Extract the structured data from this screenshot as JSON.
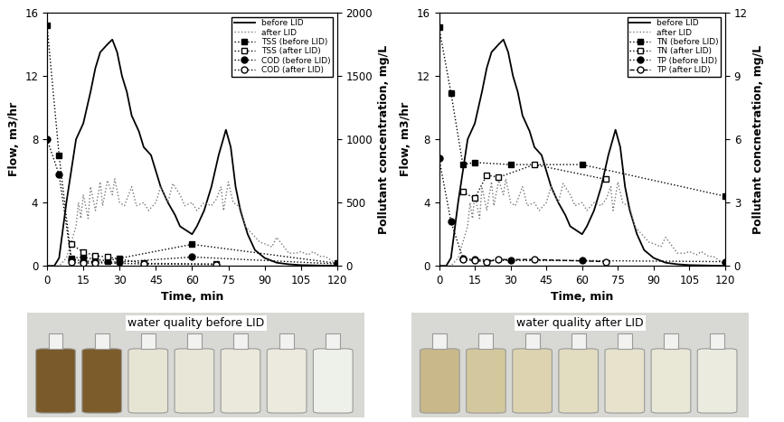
{
  "chart_data": [
    {
      "type": "line",
      "x_label": "Time, min",
      "y_label": "Flow, m3/hr",
      "y2_label": "Pollutant concentration, mg/L",
      "xlim": [
        0,
        120
      ],
      "xticks": [
        0,
        15,
        30,
        45,
        60,
        75,
        90,
        105,
        120
      ],
      "ylim": [
        0,
        16
      ],
      "yticks": [
        0,
        4,
        8,
        12,
        16
      ],
      "y2lim": [
        0,
        2000
      ],
      "y2ticks": [
        0,
        500,
        1000,
        1500,
        2000
      ],
      "legend": "upper right",
      "series": [
        {
          "name": "before LID",
          "color": "#000000",
          "line_style": "solid",
          "marker": "none",
          "axis": "y",
          "x": [
            0,
            3,
            5,
            8,
            10,
            12,
            15,
            18,
            20,
            22,
            25,
            27,
            29,
            31,
            33,
            35,
            38,
            40,
            43,
            45,
            47,
            50,
            53,
            55,
            58,
            60,
            62,
            65,
            68,
            71,
            74,
            76,
            78,
            80,
            83,
            86,
            90,
            95,
            100,
            105,
            120
          ],
          "values": [
            0,
            0,
            0.5,
            4,
            6,
            8,
            9,
            11,
            12.5,
            13.5,
            14,
            14.3,
            13.5,
            12,
            11,
            9.5,
            8.5,
            7.5,
            7,
            6,
            5,
            4,
            3.2,
            2.5,
            2.2,
            2,
            2.5,
            3.5,
            5,
            7,
            8.6,
            7.5,
            5,
            3.5,
            2,
            1,
            0.5,
            0.2,
            0.1,
            0.05,
            0
          ]
        },
        {
          "name": "after LID",
          "color": "#777777",
          "line_style": "dotted",
          "marker": "none",
          "axis": "y",
          "x": [
            0,
            5,
            8,
            10,
            12,
            13,
            14,
            15,
            17,
            18,
            20,
            22,
            23,
            25,
            27,
            28,
            30,
            32,
            35,
            37,
            40,
            42,
            45,
            47,
            50,
            52,
            55,
            57,
            60,
            62,
            65,
            68,
            70,
            72,
            73,
            75,
            77,
            80,
            82,
            85,
            88,
            90,
            93,
            95,
            98,
            100,
            103,
            105,
            108,
            110,
            113,
            115,
            118,
            120
          ],
          "values": [
            0,
            0,
            0.5,
            1.5,
            2.5,
            4,
            3,
            4.5,
            3,
            5,
            3.5,
            5.3,
            3.8,
            5.4,
            4.5,
            5.5,
            4,
            3.8,
            5,
            3.8,
            4,
            3.5,
            4,
            5,
            4,
            5.2,
            4.5,
            3.8,
            4,
            3.5,
            4,
            3.8,
            4.2,
            5,
            3.5,
            5.3,
            4,
            3.7,
            2.5,
            2,
            1.5,
            1.4,
            1.2,
            1.8,
            1.2,
            0.8,
            0.8,
            0.9,
            0.7,
            0.9,
            0.6,
            0.6,
            0.3,
            0
          ]
        },
        {
          "name": "TSS (before LID)",
          "color": "#000000",
          "line_style": "dotted",
          "marker": "square",
          "axis": "y2",
          "x": [
            0,
            5,
            10,
            15,
            20,
            25,
            30,
            60,
            120
          ],
          "values": [
            1900,
            870,
            60,
            70,
            50,
            40,
            60,
            170,
            20
          ]
        },
        {
          "name": "TSS (after LID)",
          "color": "#000000",
          "line_style": "dotted",
          "marker": "open_square",
          "axis": "y2",
          "x": [
            10,
            15,
            20,
            25,
            40,
            70
          ],
          "values": [
            170,
            110,
            80,
            70,
            20,
            15
          ]
        },
        {
          "name": "COD (before LID)",
          "color": "#000000",
          "line_style": "dotted",
          "marker": "circle",
          "axis": "y2",
          "x": [
            0,
            5,
            10,
            15,
            20,
            30,
            60,
            120
          ],
          "values": [
            1000,
            720,
            50,
            40,
            30,
            30,
            70,
            15
          ]
        },
        {
          "name": "COD (after LID)",
          "color": "#000000",
          "line_style": "dotted",
          "marker": "open_circle",
          "axis": "y2",
          "x": [
            10,
            15,
            20,
            40,
            70
          ],
          "values": [
            30,
            20,
            25,
            15,
            10
          ]
        }
      ]
    },
    {
      "type": "line",
      "x_label": "Time, min",
      "y_label": "Flow, m3/hr",
      "y2_label": "Pollutant concnetration, mg/L",
      "xlim": [
        0,
        120
      ],
      "xticks": [
        0,
        15,
        30,
        45,
        60,
        75,
        90,
        105,
        120
      ],
      "ylim": [
        0,
        16
      ],
      "yticks": [
        0,
        4,
        8,
        12,
        16
      ],
      "y2lim": [
        0,
        12
      ],
      "y2ticks": [
        0,
        3,
        6,
        9,
        12
      ],
      "legend": "upper right",
      "series": [
        {
          "name": "before LID",
          "color": "#000000",
          "line_style": "solid",
          "marker": "none",
          "axis": "y",
          "x": [
            0,
            3,
            5,
            8,
            10,
            12,
            15,
            18,
            20,
            22,
            25,
            27,
            29,
            31,
            33,
            35,
            38,
            40,
            43,
            45,
            47,
            50,
            53,
            55,
            58,
            60,
            62,
            65,
            68,
            71,
            74,
            76,
            78,
            80,
            83,
            86,
            90,
            95,
            100,
            105,
            120
          ],
          "values": [
            0,
            0,
            0.5,
            4,
            6,
            8,
            9,
            11,
            12.5,
            13.5,
            14,
            14.3,
            13.5,
            12,
            11,
            9.5,
            8.5,
            7.5,
            7,
            6,
            5,
            4,
            3.2,
            2.5,
            2.2,
            2,
            2.5,
            3.5,
            5,
            7,
            8.6,
            7.5,
            5,
            3.5,
            2,
            1,
            0.5,
            0.2,
            0.1,
            0.05,
            0
          ]
        },
        {
          "name": "after LID",
          "color": "#777777",
          "line_style": "dotted",
          "marker": "none",
          "axis": "y",
          "x": [
            0,
            5,
            8,
            10,
            12,
            13,
            14,
            15,
            17,
            18,
            20,
            22,
            23,
            25,
            27,
            28,
            30,
            32,
            35,
            37,
            40,
            42,
            45,
            47,
            50,
            52,
            55,
            57,
            60,
            62,
            65,
            68,
            70,
            72,
            73,
            75,
            77,
            80,
            82,
            85,
            88,
            90,
            93,
            95,
            98,
            100,
            103,
            105,
            108,
            110,
            113,
            115,
            118,
            120
          ],
          "values": [
            0,
            0,
            0.5,
            1.5,
            2.5,
            4,
            3,
            4.5,
            3,
            5,
            3.5,
            5.3,
            3.8,
            5.4,
            4.5,
            5.5,
            4,
            3.8,
            5,
            3.8,
            4,
            3.5,
            4,
            5,
            4,
            5.2,
            4.5,
            3.8,
            4,
            3.5,
            4,
            3.8,
            4.2,
            5,
            3.5,
            5.3,
            4,
            3.7,
            2.5,
            2,
            1.5,
            1.4,
            1.2,
            1.8,
            1.2,
            0.8,
            0.8,
            0.9,
            0.7,
            0.9,
            0.6,
            0.6,
            0.3,
            0
          ]
        },
        {
          "name": "TN (before LID)",
          "color": "#000000",
          "line_style": "dotted",
          "marker": "square",
          "axis": "y2",
          "x": [
            0,
            5,
            10,
            15,
            30,
            60,
            120
          ],
          "values": [
            11.3,
            8.2,
            4.8,
            4.9,
            4.8,
            4.8,
            3.3
          ]
        },
        {
          "name": "TN (after LID)",
          "color": "#000000",
          "line_style": "dotted",
          "marker": "open_square",
          "axis": "y2",
          "x": [
            10,
            15,
            20,
            25,
            40,
            70
          ],
          "values": [
            3.5,
            3.2,
            4.3,
            4.2,
            4.8,
            4.1
          ]
        },
        {
          "name": "TP (before LID)",
          "color": "#000000",
          "line_style": "dotted",
          "marker": "circle",
          "axis": "y2",
          "x": [
            0,
            5,
            10,
            15,
            30,
            60,
            120
          ],
          "values": [
            5.1,
            2.1,
            0.35,
            0.3,
            0.25,
            0.25,
            0.2
          ]
        },
        {
          "name": "TP (after LID)",
          "color": "#000000",
          "line_style": "dashed",
          "marker": "open_circle",
          "axis": "y2",
          "x": [
            10,
            15,
            20,
            25,
            40,
            70
          ],
          "values": [
            0.3,
            0.25,
            0.2,
            0.3,
            0.3,
            0.2
          ]
        }
      ]
    }
  ],
  "photos": {
    "captions": [
      "water quality before LID",
      "water quality after LID"
    ]
  }
}
